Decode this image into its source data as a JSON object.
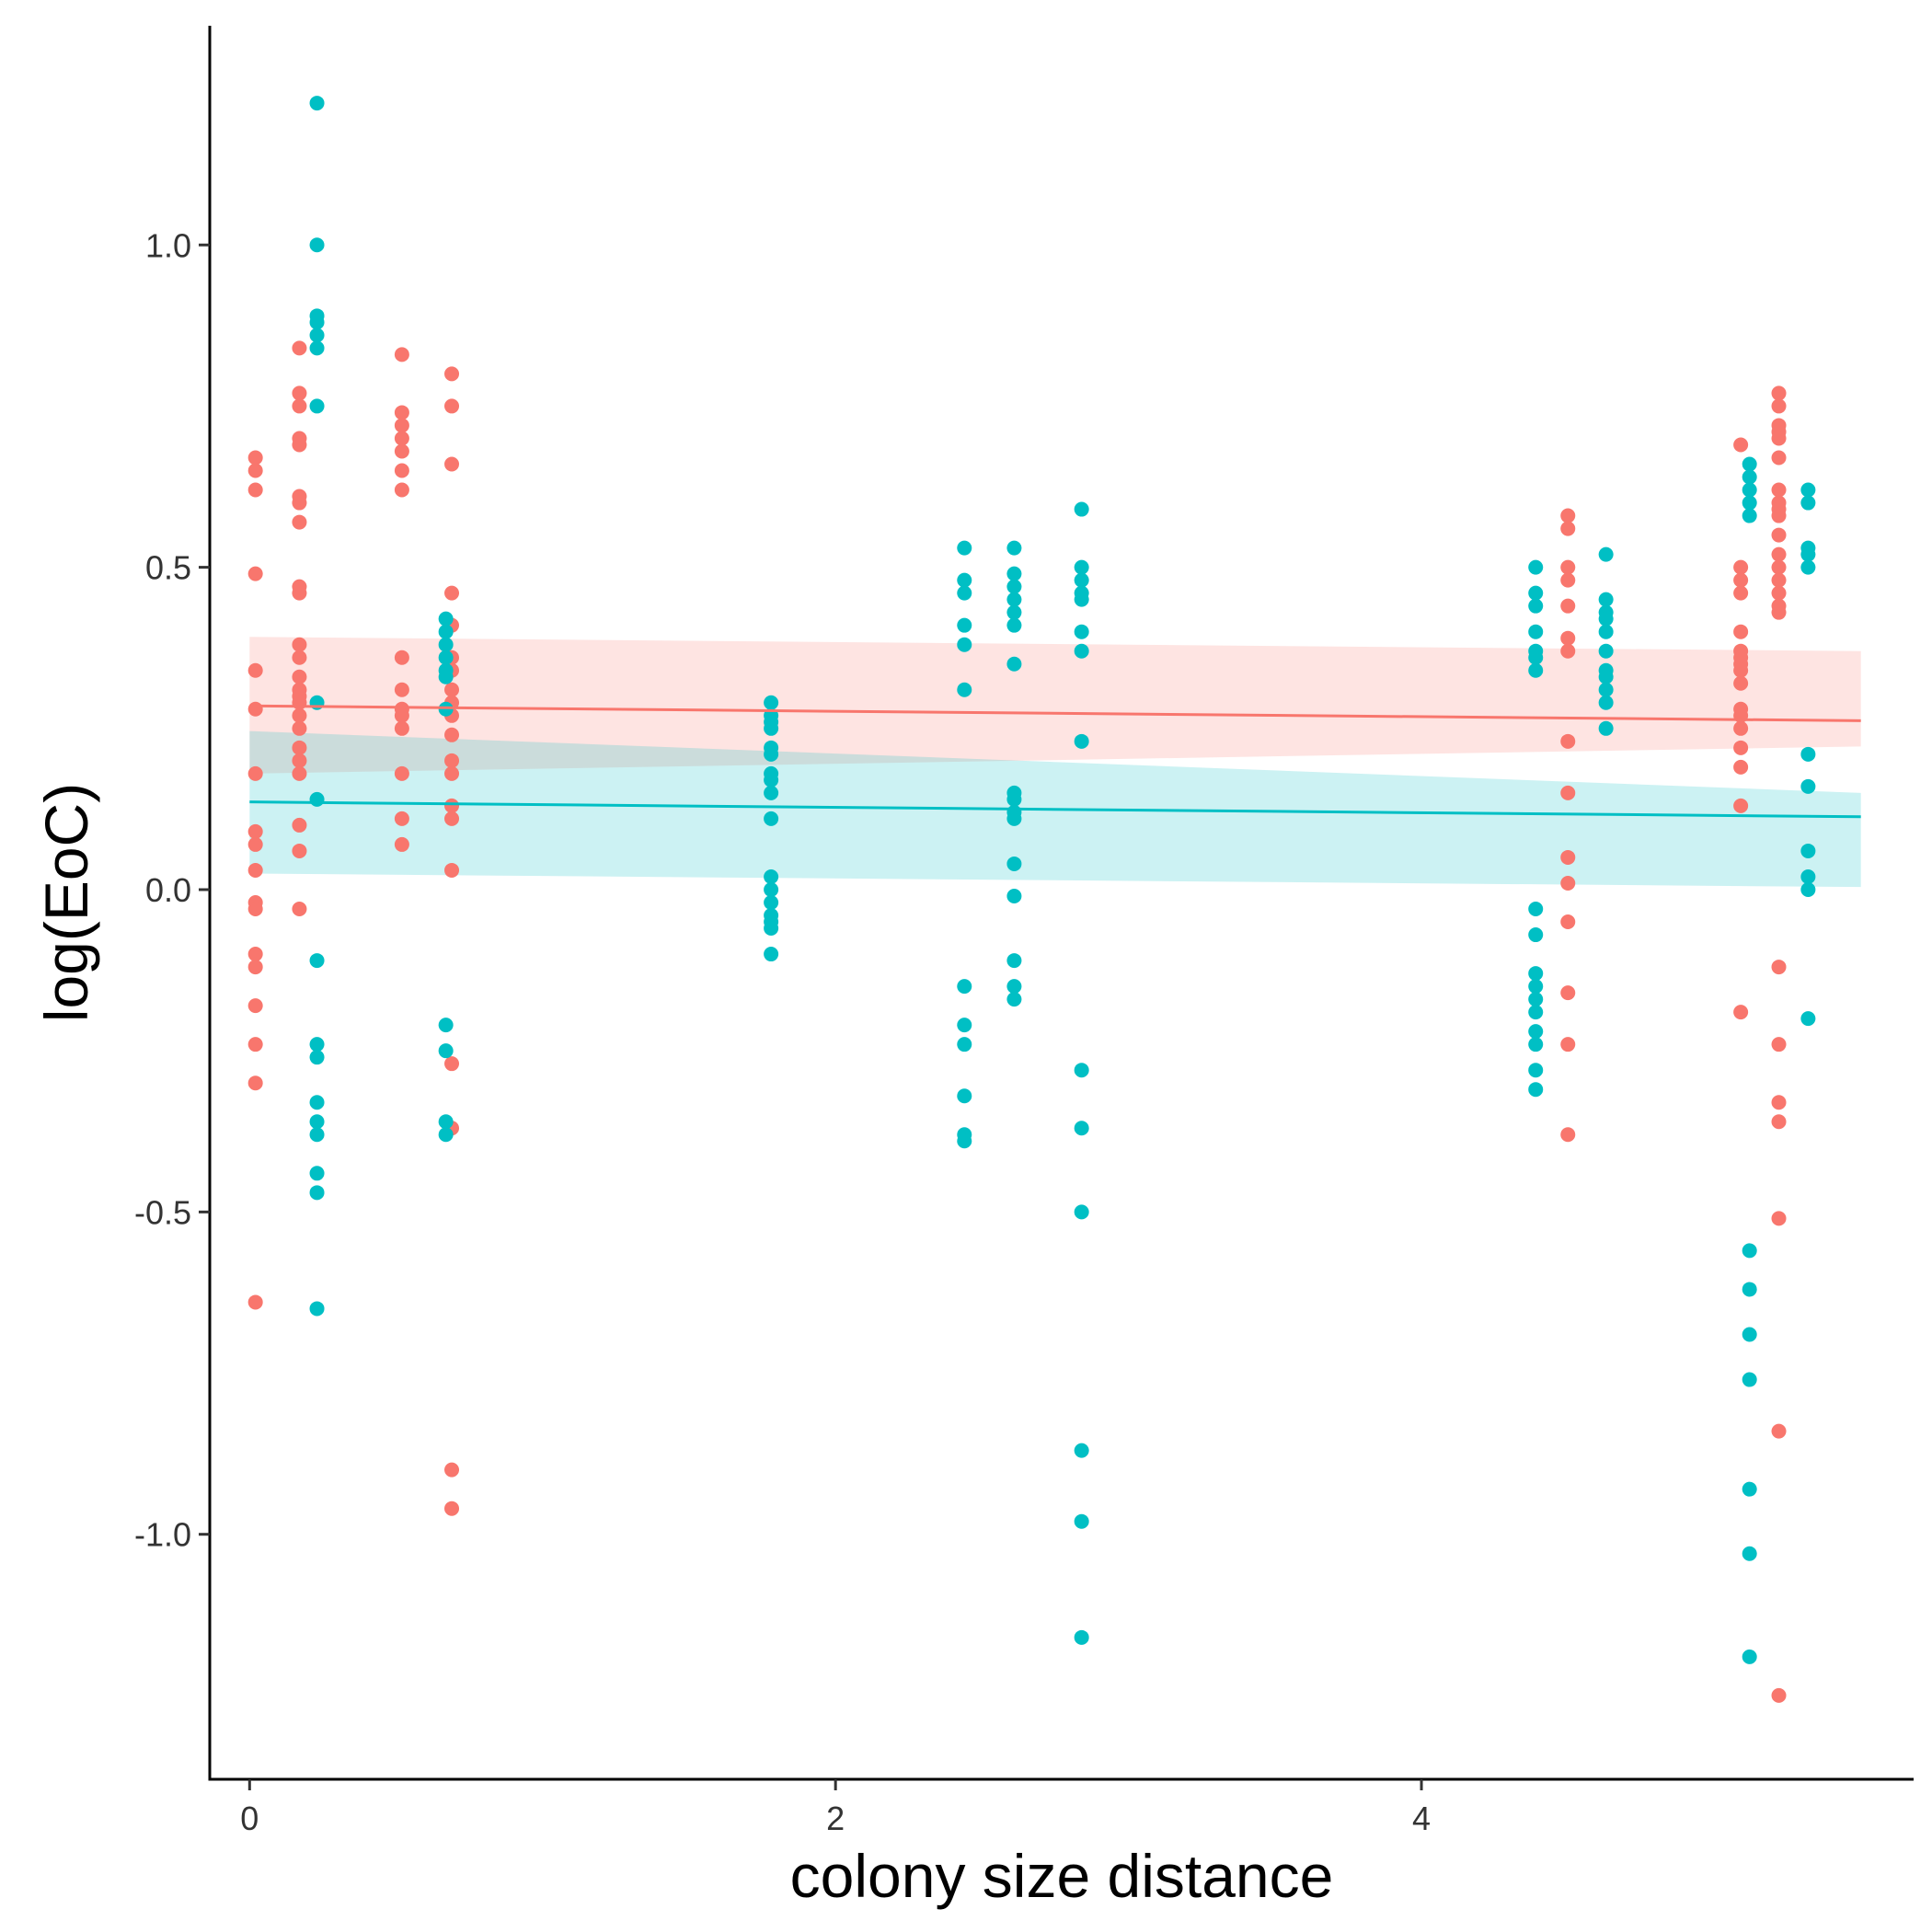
{
  "chart_data": {
    "type": "scatter",
    "title": "",
    "xlabel": "colony size distance",
    "ylabel": "log(EoC)",
    "xlim": [
      -0.136,
      5.68
    ],
    "ylim": [
      -1.38,
      1.34
    ],
    "xticks": [
      0,
      2,
      4
    ],
    "xtick_labels": [
      "0",
      "2",
      "4"
    ],
    "yticks": [
      -1.0,
      -0.5,
      0.0,
      0.5,
      1.0
    ],
    "ytick_labels": [
      "-1.0",
      "-0.5",
      "0.0",
      "0.5",
      "1.0"
    ],
    "grid": false,
    "legend": "none",
    "series": [
      {
        "color": "#F8766D",
        "band_color": "#F8766D",
        "fit": {
          "x": [
            0,
            5.5
          ],
          "y": [
            0.285,
            0.262
          ],
          "ci_upper": [
            0.392,
            0.37
          ],
          "ci_lower": [
            0.18,
            0.222
          ]
        },
        "points": [
          [
            0.02,
            0.67
          ],
          [
            0.02,
            0.65
          ],
          [
            0.02,
            0.62
          ],
          [
            0.02,
            0.49
          ],
          [
            0.02,
            0.34
          ],
          [
            0.02,
            0.28
          ],
          [
            0.02,
            0.18
          ],
          [
            0.02,
            0.09
          ],
          [
            0.02,
            0.07
          ],
          [
            0.02,
            0.03
          ],
          [
            0.02,
            -0.02
          ],
          [
            0.02,
            -0.03
          ],
          [
            0.02,
            -0.1
          ],
          [
            0.02,
            -0.12
          ],
          [
            0.02,
            -0.18
          ],
          [
            0.02,
            -0.24
          ],
          [
            0.02,
            -0.3
          ],
          [
            0.02,
            -0.64
          ],
          [
            0.17,
            0.84
          ],
          [
            0.17,
            0.77
          ],
          [
            0.17,
            0.75
          ],
          [
            0.17,
            0.7
          ],
          [
            0.17,
            0.69
          ],
          [
            0.17,
            0.61
          ],
          [
            0.17,
            0.6
          ],
          [
            0.17,
            0.57
          ],
          [
            0.17,
            0.47
          ],
          [
            0.17,
            0.46
          ],
          [
            0.17,
            0.38
          ],
          [
            0.17,
            0.36
          ],
          [
            0.17,
            0.33
          ],
          [
            0.17,
            0.31
          ],
          [
            0.17,
            0.3
          ],
          [
            0.17,
            0.29
          ],
          [
            0.17,
            0.27
          ],
          [
            0.17,
            0.25
          ],
          [
            0.17,
            0.22
          ],
          [
            0.17,
            0.2
          ],
          [
            0.17,
            0.18
          ],
          [
            0.17,
            0.1
          ],
          [
            0.17,
            0.06
          ],
          [
            0.17,
            -0.03
          ],
          [
            0.52,
            0.83
          ],
          [
            0.52,
            0.74
          ],
          [
            0.52,
            0.72
          ],
          [
            0.52,
            0.7
          ],
          [
            0.52,
            0.68
          ],
          [
            0.52,
            0.65
          ],
          [
            0.52,
            0.62
          ],
          [
            0.52,
            0.36
          ],
          [
            0.52,
            0.31
          ],
          [
            0.52,
            0.28
          ],
          [
            0.52,
            0.27
          ],
          [
            0.52,
            0.25
          ],
          [
            0.52,
            0.18
          ],
          [
            0.52,
            0.11
          ],
          [
            0.52,
            0.07
          ],
          [
            0.69,
            0.8
          ],
          [
            0.69,
            0.75
          ],
          [
            0.69,
            0.66
          ],
          [
            0.69,
            0.46
          ],
          [
            0.69,
            0.41
          ],
          [
            0.69,
            0.36
          ],
          [
            0.69,
            0.34
          ],
          [
            0.69,
            0.31
          ],
          [
            0.69,
            0.29
          ],
          [
            0.69,
            0.27
          ],
          [
            0.69,
            0.24
          ],
          [
            0.69,
            0.2
          ],
          [
            0.69,
            0.18
          ],
          [
            0.69,
            0.13
          ],
          [
            0.69,
            0.11
          ],
          [
            0.69,
            0.03
          ],
          [
            0.69,
            -0.27
          ],
          [
            0.69,
            -0.37
          ],
          [
            0.69,
            -0.9
          ],
          [
            0.69,
            -0.96
          ],
          [
            4.5,
            0.58
          ],
          [
            4.5,
            0.56
          ],
          [
            4.5,
            0.5
          ],
          [
            4.5,
            0.48
          ],
          [
            4.5,
            0.44
          ],
          [
            4.5,
            0.39
          ],
          [
            4.5,
            0.37
          ],
          [
            4.5,
            0.23
          ],
          [
            4.5,
            0.15
          ],
          [
            4.5,
            0.05
          ],
          [
            4.5,
            0.01
          ],
          [
            4.5,
            -0.05
          ],
          [
            4.5,
            -0.16
          ],
          [
            4.5,
            -0.24
          ],
          [
            4.5,
            -0.38
          ],
          [
            5.09,
            0.69
          ],
          [
            5.09,
            0.5
          ],
          [
            5.09,
            0.48
          ],
          [
            5.09,
            0.46
          ],
          [
            5.09,
            0.4
          ],
          [
            5.09,
            0.37
          ],
          [
            5.09,
            0.36
          ],
          [
            5.09,
            0.35
          ],
          [
            5.09,
            0.34
          ],
          [
            5.09,
            0.32
          ],
          [
            5.09,
            0.28
          ],
          [
            5.09,
            0.27
          ],
          [
            5.09,
            0.25
          ],
          [
            5.09,
            0.22
          ],
          [
            5.09,
            0.19
          ],
          [
            5.09,
            0.13
          ],
          [
            5.09,
            -0.19
          ],
          [
            5.22,
            0.77
          ],
          [
            5.22,
            0.75
          ],
          [
            5.22,
            0.72
          ],
          [
            5.22,
            0.71
          ],
          [
            5.22,
            0.7
          ],
          [
            5.22,
            0.67
          ],
          [
            5.22,
            0.62
          ],
          [
            5.22,
            0.6
          ],
          [
            5.22,
            0.59
          ],
          [
            5.22,
            0.58
          ],
          [
            5.22,
            0.55
          ],
          [
            5.22,
            0.52
          ],
          [
            5.22,
            0.5
          ],
          [
            5.22,
            0.48
          ],
          [
            5.22,
            0.46
          ],
          [
            5.22,
            0.44
          ],
          [
            5.22,
            0.43
          ],
          [
            5.22,
            -0.12
          ],
          [
            5.22,
            -0.24
          ],
          [
            5.22,
            -0.33
          ],
          [
            5.22,
            -0.36
          ],
          [
            5.22,
            -0.51
          ],
          [
            5.22,
            -0.84
          ],
          [
            5.22,
            -1.25
          ]
        ]
      },
      {
        "color": "#00BFC4",
        "band_color": "#00BFC4",
        "fit": {
          "x": [
            0,
            5.5
          ],
          "y": [
            0.136,
            0.113
          ],
          "ci_upper": [
            0.246,
            0.15
          ],
          "ci_lower": [
            0.025,
            0.004
          ]
        },
        "points": [
          [
            0.23,
            1.22
          ],
          [
            0.23,
            1.0
          ],
          [
            0.23,
            0.89
          ],
          [
            0.23,
            0.88
          ],
          [
            0.23,
            0.86
          ],
          [
            0.23,
            0.84
          ],
          [
            0.23,
            0.75
          ],
          [
            0.23,
            0.29
          ],
          [
            0.23,
            0.14
          ],
          [
            0.23,
            -0.11
          ],
          [
            0.23,
            -0.24
          ],
          [
            0.23,
            -0.26
          ],
          [
            0.23,
            -0.33
          ],
          [
            0.23,
            -0.36
          ],
          [
            0.23,
            -0.38
          ],
          [
            0.23,
            -0.44
          ],
          [
            0.23,
            -0.47
          ],
          [
            0.23,
            -0.65
          ],
          [
            0.67,
            0.42
          ],
          [
            0.67,
            0.4
          ],
          [
            0.67,
            0.38
          ],
          [
            0.67,
            0.36
          ],
          [
            0.67,
            0.34
          ],
          [
            0.67,
            0.33
          ],
          [
            0.67,
            0.28
          ],
          [
            0.67,
            -0.21
          ],
          [
            0.67,
            -0.25
          ],
          [
            0.67,
            -0.36
          ],
          [
            0.67,
            -0.38
          ],
          [
            1.78,
            0.29
          ],
          [
            1.78,
            0.27
          ],
          [
            1.78,
            0.26
          ],
          [
            1.78,
            0.25
          ],
          [
            1.78,
            0.22
          ],
          [
            1.78,
            0.21
          ],
          [
            1.78,
            0.18
          ],
          [
            1.78,
            0.17
          ],
          [
            1.78,
            0.15
          ],
          [
            1.78,
            0.11
          ],
          [
            1.78,
            0.02
          ],
          [
            1.78,
            0.0
          ],
          [
            1.78,
            -0.02
          ],
          [
            1.78,
            -0.04
          ],
          [
            1.78,
            -0.05
          ],
          [
            1.78,
            -0.06
          ],
          [
            1.78,
            -0.1
          ],
          [
            2.44,
            0.53
          ],
          [
            2.44,
            0.48
          ],
          [
            2.44,
            0.46
          ],
          [
            2.44,
            0.41
          ],
          [
            2.44,
            0.38
          ],
          [
            2.44,
            0.31
          ],
          [
            2.44,
            -0.15
          ],
          [
            2.44,
            -0.21
          ],
          [
            2.44,
            -0.24
          ],
          [
            2.44,
            -0.32
          ],
          [
            2.44,
            -0.38
          ],
          [
            2.44,
            -0.39
          ],
          [
            2.61,
            0.53
          ],
          [
            2.61,
            0.49
          ],
          [
            2.61,
            0.47
          ],
          [
            2.61,
            0.45
          ],
          [
            2.61,
            0.43
          ],
          [
            2.61,
            0.41
          ],
          [
            2.61,
            0.35
          ],
          [
            2.61,
            0.15
          ],
          [
            2.61,
            0.14
          ],
          [
            2.61,
            0.12
          ],
          [
            2.61,
            0.11
          ],
          [
            2.61,
            0.04
          ],
          [
            2.61,
            -0.01
          ],
          [
            2.61,
            -0.11
          ],
          [
            2.61,
            -0.15
          ],
          [
            2.61,
            -0.17
          ],
          [
            2.84,
            0.59
          ],
          [
            2.84,
            0.5
          ],
          [
            2.84,
            0.48
          ],
          [
            2.84,
            0.46
          ],
          [
            2.84,
            0.45
          ],
          [
            2.84,
            0.4
          ],
          [
            2.84,
            0.37
          ],
          [
            2.84,
            0.23
          ],
          [
            2.84,
            -0.28
          ],
          [
            2.84,
            -0.37
          ],
          [
            2.84,
            -0.5
          ],
          [
            2.84,
            -0.87
          ],
          [
            2.84,
            -0.98
          ],
          [
            2.84,
            -1.16
          ],
          [
            4.39,
            0.5
          ],
          [
            4.39,
            0.46
          ],
          [
            4.39,
            0.44
          ],
          [
            4.39,
            0.4
          ],
          [
            4.39,
            0.37
          ],
          [
            4.39,
            0.36
          ],
          [
            4.39,
            0.34
          ],
          [
            4.39,
            -0.03
          ],
          [
            4.39,
            -0.07
          ],
          [
            4.39,
            -0.13
          ],
          [
            4.39,
            -0.15
          ],
          [
            4.39,
            -0.17
          ],
          [
            4.39,
            -0.19
          ],
          [
            4.39,
            -0.22
          ],
          [
            4.39,
            -0.24
          ],
          [
            4.39,
            -0.28
          ],
          [
            4.39,
            -0.31
          ],
          [
            4.63,
            0.52
          ],
          [
            4.63,
            0.45
          ],
          [
            4.63,
            0.43
          ],
          [
            4.63,
            0.42
          ],
          [
            4.63,
            0.4
          ],
          [
            4.63,
            0.37
          ],
          [
            4.63,
            0.34
          ],
          [
            4.63,
            0.33
          ],
          [
            4.63,
            0.31
          ],
          [
            4.63,
            0.29
          ],
          [
            4.63,
            0.25
          ],
          [
            5.12,
            0.66
          ],
          [
            5.12,
            0.64
          ],
          [
            5.12,
            0.62
          ],
          [
            5.12,
            0.6
          ],
          [
            5.12,
            0.58
          ],
          [
            5.12,
            -0.56
          ],
          [
            5.12,
            -0.62
          ],
          [
            5.12,
            -0.69
          ],
          [
            5.12,
            -0.76
          ],
          [
            5.12,
            -0.93
          ],
          [
            5.12,
            -1.03
          ],
          [
            5.12,
            -1.19
          ],
          [
            5.32,
            0.62
          ],
          [
            5.32,
            0.6
          ],
          [
            5.32,
            0.53
          ],
          [
            5.32,
            0.52
          ],
          [
            5.32,
            0.5
          ],
          [
            5.32,
            0.21
          ],
          [
            5.32,
            0.16
          ],
          [
            5.32,
            0.06
          ],
          [
            5.32,
            0.02
          ],
          [
            5.32,
            0.0
          ],
          [
            5.32,
            -0.2
          ]
        ]
      }
    ]
  }
}
